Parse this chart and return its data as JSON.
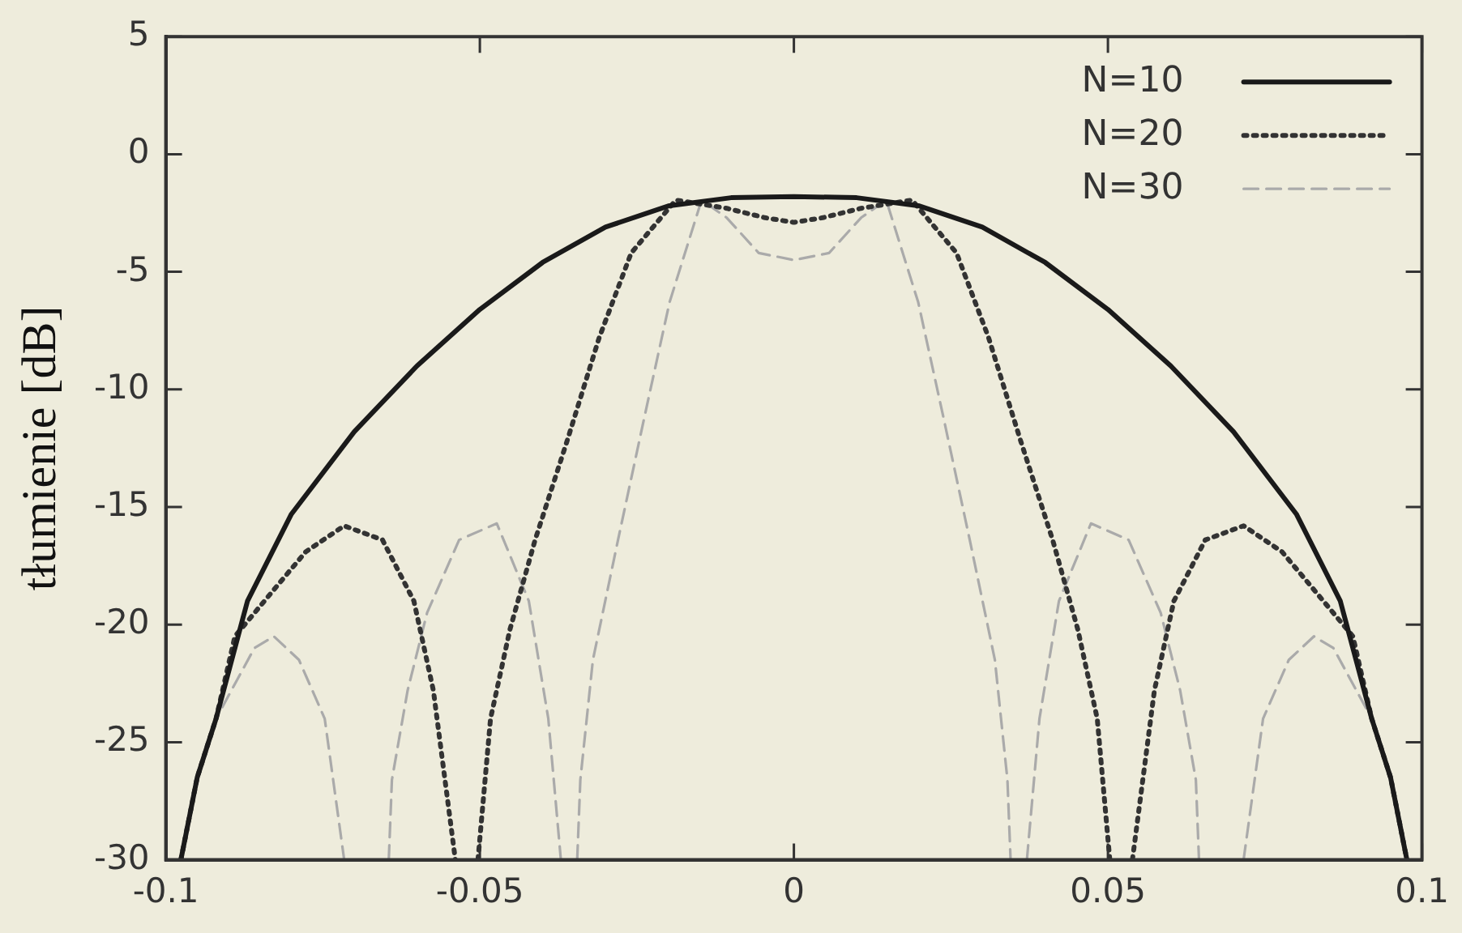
{
  "chart_data": {
    "type": "line",
    "ylabel": "tłumienie [dB]",
    "xlim": [
      -0.1,
      0.1
    ],
    "xticks": [
      -0.1,
      -0.05,
      0,
      0.05,
      0.1
    ],
    "ylim": [
      -30,
      5
    ],
    "yticks": [
      -30,
      -25,
      -20,
      -15,
      -10,
      -5,
      0,
      5
    ],
    "grid": false,
    "legend": "top right",
    "marker": "none",
    "series": [
      {
        "name": "N=10",
        "color": "#1a1a1a",
        "line_style": "solid",
        "x": [
          -0.0976,
          -0.095,
          -0.092,
          -0.087,
          -0.08,
          -0.07,
          -0.06,
          -0.05,
          -0.04,
          -0.03,
          -0.02,
          -0.01,
          0,
          0.01,
          0.02,
          0.03,
          0.04,
          0.05,
          0.06,
          0.07,
          0.08,
          0.087,
          0.092,
          0.095,
          0.0976
        ],
        "values": [
          -30,
          -26.5,
          -24,
          -19,
          -15.3,
          -11.8,
          -9,
          -6.6,
          -4.6,
          -3.1,
          -2.2,
          -1.85,
          -1.8,
          -1.85,
          -2.2,
          -3.1,
          -4.6,
          -6.6,
          -9,
          -11.8,
          -15.3,
          -19,
          -24,
          -26.5,
          -30
        ]
      },
      {
        "name": "N=20",
        "color": "#333333",
        "line_style": "dotted",
        "x": [
          -0.0976,
          -0.095,
          -0.092,
          -0.089,
          -0.0818,
          -0.0777,
          -0.0716,
          -0.0655,
          -0.0605,
          -0.0574,
          -0.0539,
          -0.052,
          -0.0503,
          -0.0483,
          -0.0452,
          -0.0412,
          -0.036,
          -0.031,
          -0.0259,
          -0.0188,
          -0.0107,
          -0.0046,
          0,
          0.0046,
          0.0107,
          0.0188,
          0.0259,
          0.031,
          0.036,
          0.0412,
          0.0452,
          0.0483,
          0.0503,
          0.052,
          0.0539,
          0.0574,
          0.0605,
          0.0655,
          0.0716,
          0.0777,
          0.0818,
          0.089,
          0.092,
          0.095,
          0.0976
        ],
        "values": [
          -30,
          -26.5,
          -24,
          -20.5,
          -18.2,
          -16.9,
          -15.8,
          -16.4,
          -19,
          -22.8,
          -30,
          null,
          -30,
          -24,
          -20.2,
          -16.4,
          -12.1,
          -7.8,
          -4.2,
          -1.95,
          -2.3,
          -2.7,
          -2.9,
          -2.7,
          -2.3,
          -1.95,
          -4.2,
          -7.8,
          -12.1,
          -16.4,
          -20.2,
          -24,
          -30,
          null,
          -30,
          -22.8,
          -19,
          -16.4,
          -15.8,
          -16.9,
          -18.2,
          -20.5,
          -24,
          -26.5,
          -30
        ]
      },
      {
        "name": "N=30",
        "color": "#aaaaaa",
        "line_style": "dashed",
        "x": [
          -0.0976,
          -0.095,
          -0.092,
          -0.0859,
          -0.0828,
          -0.0788,
          -0.0747,
          -0.0716,
          -0.068,
          -0.0645,
          -0.064,
          -0.0615,
          -0.0584,
          -0.0533,
          -0.0473,
          -0.0422,
          -0.0391,
          -0.0371,
          -0.0358,
          -0.0345,
          -0.034,
          -0.032,
          -0.028,
          -0.0239,
          -0.0198,
          -0.0147,
          -0.0107,
          -0.0056,
          0,
          0.0056,
          0.0107,
          0.0147,
          0.0198,
          0.0239,
          0.028,
          0.032,
          0.034,
          0.0345,
          0.0358,
          0.0371,
          0.0391,
          0.0422,
          0.0473,
          0.0533,
          0.0584,
          0.0615,
          0.064,
          0.0645,
          0.068,
          0.0716,
          0.0747,
          0.0788,
          0.0828,
          0.0859,
          0.092,
          0.095,
          0.0976
        ],
        "values": [
          -30,
          -26.5,
          -24,
          -21,
          -20.5,
          -21.5,
          -24,
          -30,
          null,
          -30,
          -26.6,
          -22.8,
          -19.5,
          -16.4,
          -15.7,
          -19,
          -24,
          -30,
          null,
          -30,
          -26.6,
          -21.5,
          -16.4,
          -11.3,
          -6.3,
          -1.95,
          -2.7,
          -4.2,
          -4.5,
          -4.2,
          -2.7,
          -1.95,
          -6.3,
          -11.3,
          -16.4,
          -21.5,
          -26.6,
          -30,
          null,
          -30,
          -24,
          -19,
          -15.7,
          -16.4,
          -19.5,
          -22.8,
          -26.6,
          -30,
          null,
          -30,
          -24,
          -21.5,
          -20.5,
          -21,
          -24,
          -26.5,
          -30
        ]
      }
    ]
  }
}
